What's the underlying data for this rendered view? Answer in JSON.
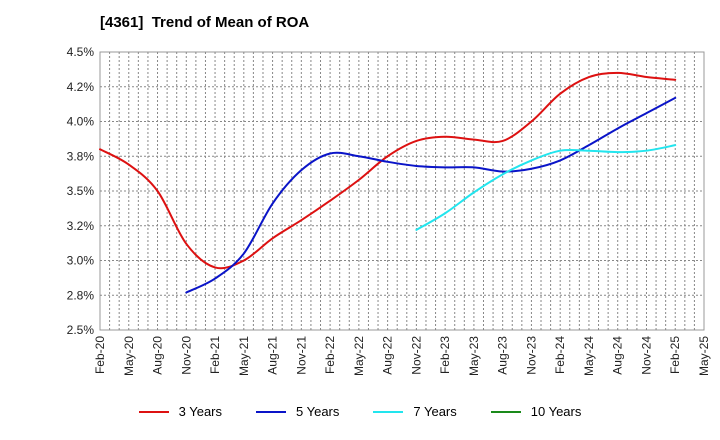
{
  "title": "[4361]  Trend of Mean of ROA",
  "chart_data": {
    "type": "line",
    "title": "[4361]  Trend of Mean of ROA",
    "xlabel": "",
    "ylabel": "",
    "ylim": [
      2.5,
      4.5
    ],
    "y_ticks": [
      "2.5%",
      "2.8%",
      "3.0%",
      "3.2%",
      "3.5%",
      "3.8%",
      "4.0%",
      "4.2%",
      "4.5%"
    ],
    "x_ticks": [
      "Feb-20",
      "May-20",
      "Aug-20",
      "Nov-20",
      "Feb-21",
      "May-21",
      "Aug-21",
      "Nov-21",
      "Feb-22",
      "May-22",
      "Aug-22",
      "Nov-22",
      "Feb-23",
      "May-23",
      "Aug-23",
      "Nov-23",
      "Feb-24",
      "May-24",
      "Aug-24",
      "Nov-24",
      "Feb-25",
      "May-25"
    ],
    "grid": true,
    "legend_position": "bottom",
    "series": [
      {
        "name": "3 Years",
        "color": "#dd1111",
        "points": [
          [
            "Feb-20",
            3.8
          ],
          [
            "May-20",
            3.69
          ],
          [
            "Aug-20",
            3.5
          ],
          [
            "Nov-20",
            3.12
          ],
          [
            "Feb-21",
            2.95
          ],
          [
            "May-21",
            3.0
          ],
          [
            "Aug-21",
            3.16
          ],
          [
            "Nov-21",
            3.29
          ],
          [
            "Feb-22",
            3.43
          ],
          [
            "May-22",
            3.58
          ],
          [
            "Aug-22",
            3.75
          ],
          [
            "Nov-22",
            3.86
          ],
          [
            "Feb-23",
            3.89
          ],
          [
            "May-23",
            3.87
          ],
          [
            "Aug-23",
            3.86
          ],
          [
            "Nov-23",
            4.0
          ],
          [
            "Feb-24",
            4.2
          ],
          [
            "May-24",
            4.32
          ],
          [
            "Aug-24",
            4.35
          ],
          [
            "Nov-24",
            4.32
          ],
          [
            "Feb-25",
            4.3
          ]
        ]
      },
      {
        "name": "5 Years",
        "color": "#0a14c8",
        "points": [
          [
            "Nov-20",
            2.77
          ],
          [
            "Feb-21",
            2.87
          ],
          [
            "May-21",
            3.05
          ],
          [
            "Aug-21",
            3.41
          ],
          [
            "Nov-21",
            3.65
          ],
          [
            "Feb-22",
            3.77
          ],
          [
            "May-22",
            3.75
          ],
          [
            "Aug-22",
            3.71
          ],
          [
            "Nov-22",
            3.68
          ],
          [
            "Feb-23",
            3.67
          ],
          [
            "May-23",
            3.67
          ],
          [
            "Aug-23",
            3.64
          ],
          [
            "Nov-23",
            3.66
          ],
          [
            "Feb-24",
            3.72
          ],
          [
            "May-24",
            3.83
          ],
          [
            "Aug-24",
            3.95
          ],
          [
            "Nov-24",
            4.06
          ],
          [
            "Feb-25",
            4.17
          ]
        ]
      },
      {
        "name": "7 Years",
        "color": "#22e5ee",
        "points": [
          [
            "Nov-22",
            3.22
          ],
          [
            "Feb-23",
            3.34
          ],
          [
            "May-23",
            3.49
          ],
          [
            "Aug-23",
            3.62
          ],
          [
            "Nov-23",
            3.72
          ],
          [
            "Feb-24",
            3.79
          ],
          [
            "May-24",
            3.79
          ],
          [
            "Aug-24",
            3.78
          ],
          [
            "Nov-24",
            3.79
          ],
          [
            "Feb-25",
            3.83
          ]
        ]
      },
      {
        "name": "10 Years",
        "color": "#1a8a1a",
        "points": []
      }
    ]
  }
}
